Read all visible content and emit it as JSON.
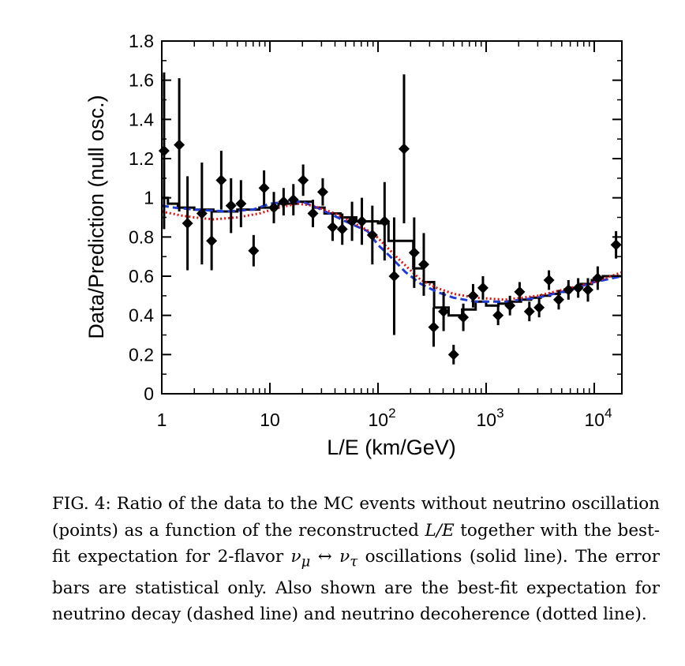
{
  "chart_data": {
    "type": "scatter",
    "xlabel": "L/E (km/GeV)",
    "ylabel": "Data/Prediction (null osc.)",
    "xscale": "log",
    "xlim": [
      1,
      18000
    ],
    "ylim": [
      0,
      1.8
    ],
    "x_ticks": [
      {
        "value": 1,
        "base": "1",
        "exp": ""
      },
      {
        "value": 10,
        "base": "10",
        "exp": ""
      },
      {
        "value": 100,
        "base": "10",
        "exp": "2"
      },
      {
        "value": 1000,
        "base": "10",
        "exp": "3"
      },
      {
        "value": 10000,
        "base": "10",
        "exp": "4"
      }
    ],
    "y_ticks": [
      "0",
      "0.2",
      "0.4",
      "0.6",
      "0.8",
      "1",
      "1.2",
      "1.4",
      "1.6",
      "1.8"
    ],
    "series": [
      {
        "style": "points",
        "color": "#000000",
        "points": [
          {
            "x": 1.05,
            "y": 1.24,
            "err": 0.4
          },
          {
            "x": 1.45,
            "y": 1.27,
            "err": 0.34
          },
          {
            "x": 1.73,
            "y": 0.87,
            "err": 0.24
          },
          {
            "x": 2.35,
            "y": 0.92,
            "err": 0.26
          },
          {
            "x": 2.89,
            "y": 0.78,
            "err": 0.15
          },
          {
            "x": 3.55,
            "y": 1.09,
            "err": 0.15
          },
          {
            "x": 4.37,
            "y": 0.96,
            "err": 0.14
          },
          {
            "x": 5.4,
            "y": 0.97,
            "err": 0.12
          },
          {
            "x": 7.07,
            "y": 0.73,
            "err": 0.08
          },
          {
            "x": 8.83,
            "y": 1.05,
            "err": 0.09
          },
          {
            "x": 10.88,
            "y": 0.95,
            "err": 0.08
          },
          {
            "x": 13.39,
            "y": 0.98,
            "err": 0.07
          },
          {
            "x": 16.49,
            "y": 0.99,
            "err": 0.08
          },
          {
            "x": 20.3,
            "y": 1.09,
            "err": 0.08
          },
          {
            "x": 25.0,
            "y": 0.92,
            "err": 0.07
          },
          {
            "x": 30.8,
            "y": 1.03,
            "err": 0.07
          },
          {
            "x": 38.0,
            "y": 0.85,
            "err": 0.07
          },
          {
            "x": 46.7,
            "y": 0.84,
            "err": 0.08
          },
          {
            "x": 57.5,
            "y": 0.88,
            "err": 0.1
          },
          {
            "x": 70.9,
            "y": 0.88,
            "err": 0.12
          },
          {
            "x": 88.6,
            "y": 0.81,
            "err": 0.15
          },
          {
            "x": 115,
            "y": 0.88,
            "err": 0.2
          },
          {
            "x": 141,
            "y": 0.6,
            "err": 0.3
          },
          {
            "x": 174,
            "y": 1.25,
            "err": 0.38
          },
          {
            "x": 216,
            "y": 0.72,
            "err": 0.18
          },
          {
            "x": 265,
            "y": 0.66,
            "err": 0.16
          },
          {
            "x": 327,
            "y": 0.34,
            "err": 0.1
          },
          {
            "x": 404,
            "y": 0.42,
            "err": 0.1
          },
          {
            "x": 500,
            "y": 0.2,
            "err": 0.05
          },
          {
            "x": 615,
            "y": 0.39,
            "err": 0.07
          },
          {
            "x": 757,
            "y": 0.5,
            "err": 0.06
          },
          {
            "x": 934,
            "y": 0.54,
            "err": 0.06
          },
          {
            "x": 1290,
            "y": 0.4,
            "err": 0.05
          },
          {
            "x": 1660,
            "y": 0.45,
            "err": 0.05
          },
          {
            "x": 2040,
            "y": 0.52,
            "err": 0.05
          },
          {
            "x": 2510,
            "y": 0.42,
            "err": 0.05
          },
          {
            "x": 3090,
            "y": 0.44,
            "err": 0.05
          },
          {
            "x": 3810,
            "y": 0.58,
            "err": 0.05
          },
          {
            "x": 4690,
            "y": 0.48,
            "err": 0.05
          },
          {
            "x": 5770,
            "y": 0.53,
            "err": 0.05
          },
          {
            "x": 7100,
            "y": 0.54,
            "err": 0.05
          },
          {
            "x": 8740,
            "y": 0.53,
            "err": 0.06
          },
          {
            "x": 10760,
            "y": 0.59,
            "err": 0.06
          },
          {
            "x": 15900,
            "y": 0.76,
            "err": 0.07
          }
        ]
      },
      {
        "style": "solid-step",
        "color": "#000000",
        "edges": [
          1,
          1.14,
          1.41,
          2,
          3,
          5,
          8,
          12,
          18,
          25,
          32,
          45,
          63,
          100,
          125,
          160,
          212,
          265,
          330,
          450,
          600,
          800,
          1000,
          1300,
          1700,
          2100,
          2600,
          3200,
          3900,
          4800,
          6000,
          7500,
          9500,
          12000,
          18000
        ],
        "values": [
          1.0,
          0.97,
          0.95,
          0.94,
          0.93,
          0.94,
          0.95,
          0.97,
          0.98,
          0.95,
          0.92,
          0.9,
          0.88,
          0.87,
          0.78,
          0.78,
          0.64,
          0.57,
          0.44,
          0.4,
          0.43,
          0.47,
          0.45,
          0.46,
          0.47,
          0.48,
          0.49,
          0.5,
          0.51,
          0.52,
          0.54,
          0.56,
          0.58,
          0.6
        ]
      },
      {
        "style": "dashed",
        "color": "#1f3bd6",
        "points": [
          [
            1,
            0.96
          ],
          [
            1.3,
            0.95
          ],
          [
            2,
            0.94
          ],
          [
            4,
            0.93
          ],
          [
            7,
            0.94
          ],
          [
            10,
            0.97
          ],
          [
            15,
            0.98
          ],
          [
            20,
            0.98
          ],
          [
            30,
            0.94
          ],
          [
            50,
            0.88
          ],
          [
            80,
            0.83
          ],
          [
            100,
            0.76
          ],
          [
            130,
            0.7
          ],
          [
            180,
            0.62
          ],
          [
            250,
            0.56
          ],
          [
            350,
            0.52
          ],
          [
            500,
            0.49
          ],
          [
            800,
            0.47
          ],
          [
            1500,
            0.47
          ],
          [
            3000,
            0.49
          ],
          [
            6000,
            0.53
          ],
          [
            10000,
            0.57
          ],
          [
            18000,
            0.6
          ]
        ]
      },
      {
        "style": "dotted",
        "color": "#e01010",
        "points": [
          [
            1,
            0.93
          ],
          [
            1.5,
            0.91
          ],
          [
            2,
            0.9
          ],
          [
            3,
            0.89
          ],
          [
            5,
            0.9
          ],
          [
            8,
            0.92
          ],
          [
            12,
            0.95
          ],
          [
            18,
            0.97
          ],
          [
            25,
            0.96
          ],
          [
            40,
            0.92
          ],
          [
            60,
            0.87
          ],
          [
            90,
            0.82
          ],
          [
            120,
            0.75
          ],
          [
            160,
            0.68
          ],
          [
            250,
            0.58
          ],
          [
            350,
            0.54
          ],
          [
            500,
            0.51
          ],
          [
            800,
            0.49
          ],
          [
            1500,
            0.48
          ],
          [
            3000,
            0.5
          ],
          [
            6000,
            0.54
          ],
          [
            10000,
            0.57
          ],
          [
            18000,
            0.62
          ]
        ]
      }
    ]
  },
  "caption": {
    "label": "FIG. 4:",
    "p1": " Ratio of the data to the MC events without neutrino oscillation (points) as a function of the reconstructed ",
    "le": "L/E",
    "p2": " together with the best-fit expectation for 2-flavor ",
    "nu_mu": "ν",
    "mu": "μ",
    "arrow": " ↔ ",
    "nu_tau": "ν",
    "tau": "τ",
    "p3": " oscillations (solid line).  The error bars are statistical only. Also shown are the best-fit expectation for neutrino decay (dashed line) and neutrino decoherence (dotted line)."
  }
}
